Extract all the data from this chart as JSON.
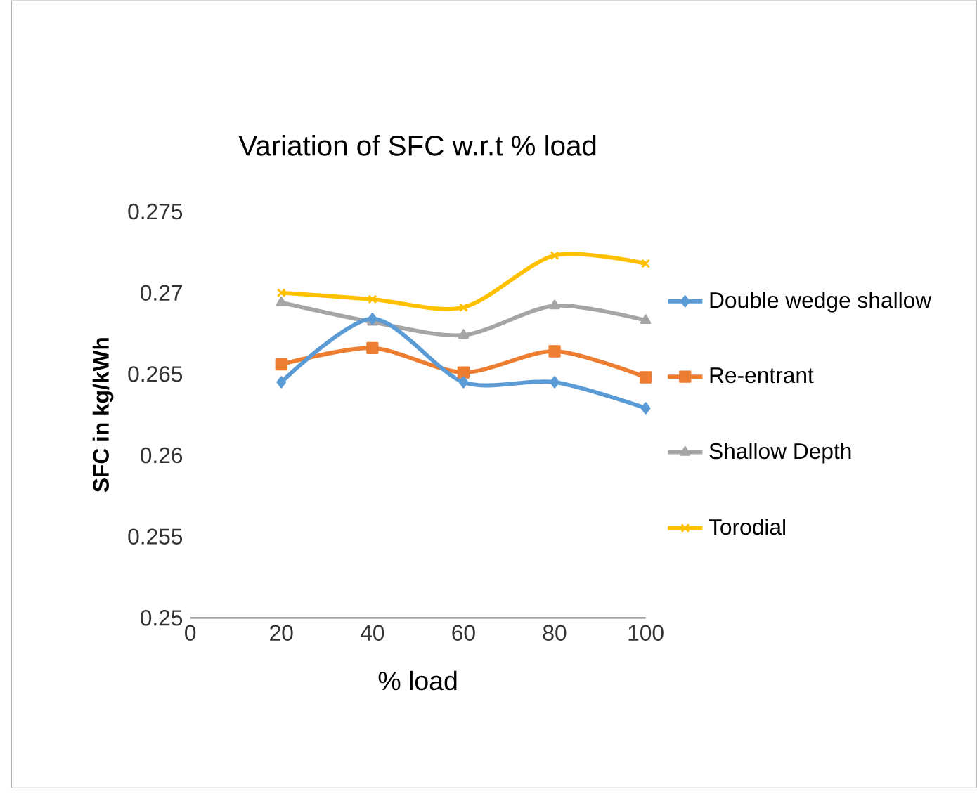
{
  "chart_data": {
    "type": "line",
    "title": "Variation of SFC w.r.t % load",
    "xlabel": "% load",
    "ylabel": "SFC in  kg/kWh",
    "x": [
      20,
      40,
      60,
      80,
      100
    ],
    "series": [
      {
        "name": "Double wedge shallow",
        "color": "#5b9bd5",
        "marker": "diamond",
        "values": [
          0.2645,
          0.2684,
          0.2645,
          0.2645,
          0.2629
        ]
      },
      {
        "name": "Re-entrant",
        "color": "#ed7d31",
        "marker": "square",
        "values": [
          0.2656,
          0.2666,
          0.2651,
          0.2664,
          0.2648
        ]
      },
      {
        "name": "Shallow Depth",
        "color": "#a5a5a5",
        "marker": "triangle",
        "values": [
          0.2694,
          0.2682,
          0.2674,
          0.2692,
          0.2683
        ]
      },
      {
        "name": "Torodial",
        "color": "#ffc000",
        "marker": "cross",
        "values": [
          0.27,
          0.2696,
          0.2691,
          0.2723,
          0.2718
        ]
      }
    ],
    "xlim": [
      0,
      100
    ],
    "xticks": [
      0,
      20,
      40,
      60,
      80,
      100
    ],
    "ylim": [
      0.25,
      0.275
    ],
    "yticks": [
      {
        "value": 0.25,
        "label": "0.25"
      },
      {
        "value": 0.255,
        "label": "0.255"
      },
      {
        "value": 0.26,
        "label": "0.26"
      },
      {
        "value": 0.265,
        "label": "0.265"
      },
      {
        "value": 0.27,
        "label": "0.27"
      },
      {
        "value": 0.275,
        "label": "0.275"
      }
    ],
    "grid": false,
    "legend": "right"
  }
}
